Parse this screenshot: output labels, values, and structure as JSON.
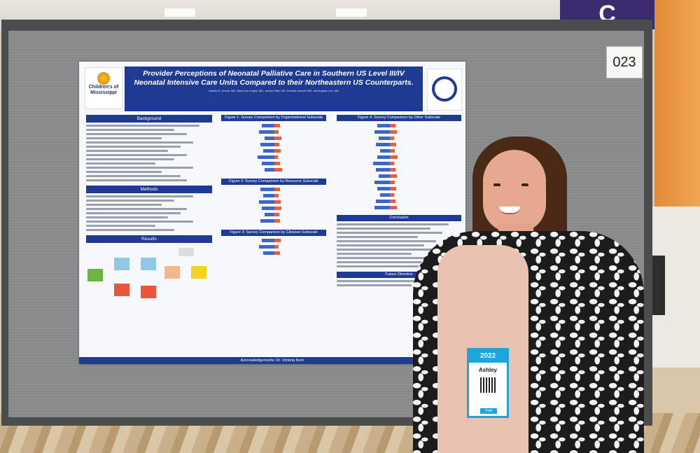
{
  "scene": {
    "sign_letter": "C",
    "board_number": "023"
  },
  "poster": {
    "title": "Provider Perceptions of Neonatal Palliative Care in Southern US Level III/IV Neonatal Intensive Care Units Compared to their Northeastern US Counterparts.",
    "authors": "Ashley R. Duvall, MD, Mary Ann Knight, MD, James Piatt, MD, Pamela Garrett, MD, and Angela Lee, MD",
    "logo_left_text": "Children's of Mississippi",
    "sections_left": [
      "Background",
      "Methods",
      "Results"
    ],
    "figures_middle": [
      "Figure 1: Survey Comparison by Organizational Subscale",
      "Figure 2: Survey Comparison by Resource Subscale",
      "Figure 3: Survey Comparison by Clinician Subscale"
    ],
    "figures_right": [
      "Figure 4: Survey Comparison by Other Subscale",
      "Conclusion",
      "Future Direction"
    ],
    "footer": "Acknowledgements: Dr. Victoria Kern"
  },
  "badge": {
    "year": "2022",
    "name": "Ashley",
    "tag": "Fwd"
  }
}
